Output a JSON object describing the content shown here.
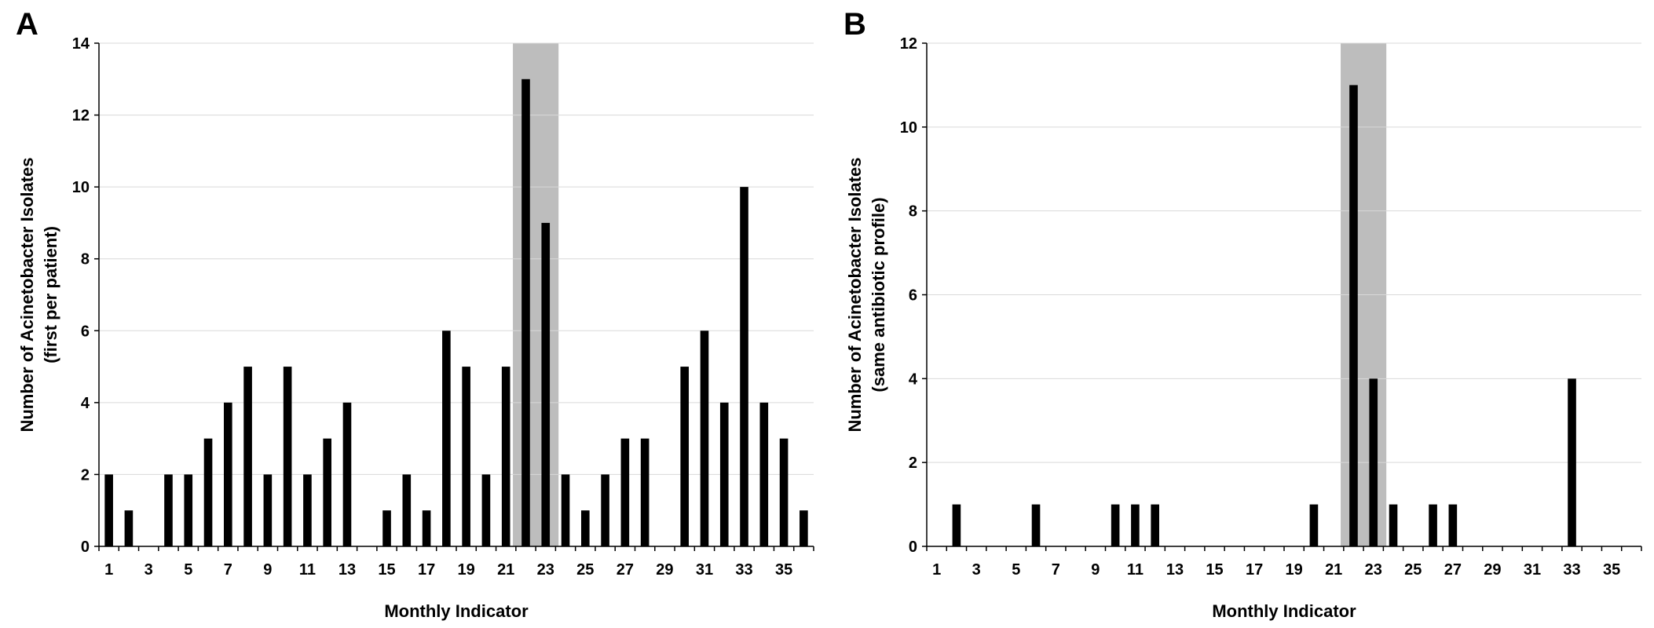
{
  "chart_data": [
    {
      "type": "bar",
      "panel_label": "A",
      "xlabel": "Monthly Indicator",
      "ylabel_lines": [
        "Number of Acinetobacter Isolates",
        "(first per patient)"
      ],
      "ylim": [
        0,
        14
      ],
      "yticks": [
        0,
        2,
        4,
        6,
        8,
        10,
        12,
        14
      ],
      "x_tick_labels": [
        "1",
        "3",
        "5",
        "7",
        "9",
        "11",
        "13",
        "15",
        "17",
        "19",
        "21",
        "23",
        "25",
        "27",
        "29",
        "31",
        "33",
        "35"
      ],
      "categories": [
        1,
        2,
        3,
        4,
        5,
        6,
        7,
        8,
        9,
        10,
        11,
        12,
        13,
        14,
        15,
        16,
        17,
        18,
        19,
        20,
        21,
        22,
        23,
        24,
        25,
        26,
        27,
        28,
        29,
        30,
        31,
        32,
        33,
        34,
        35,
        36
      ],
      "values": [
        2,
        1,
        0,
        2,
        2,
        3,
        4,
        5,
        2,
        5,
        2,
        3,
        4,
        0,
        1,
        2,
        1,
        6,
        5,
        2,
        5,
        13,
        9,
        2,
        1,
        2,
        3,
        3,
        0,
        5,
        6,
        4,
        10,
        4,
        3,
        1
      ],
      "highlight_months": [
        22,
        23
      ],
      "grid": true
    },
    {
      "type": "bar",
      "panel_label": "B",
      "xlabel": "Monthly Indicator",
      "ylabel_lines": [
        "Number of Acinetobacter Isolates",
        "(same antibiotic profile)"
      ],
      "ylim": [
        0,
        12
      ],
      "yticks": [
        0,
        2,
        4,
        6,
        8,
        10,
        12
      ],
      "x_tick_labels": [
        "1",
        "3",
        "5",
        "7",
        "9",
        "11",
        "13",
        "15",
        "17",
        "19",
        "21",
        "23",
        "25",
        "27",
        "29",
        "31",
        "33",
        "35"
      ],
      "categories": [
        1,
        2,
        3,
        4,
        5,
        6,
        7,
        8,
        9,
        10,
        11,
        12,
        13,
        14,
        15,
        16,
        17,
        18,
        19,
        20,
        21,
        22,
        23,
        24,
        25,
        26,
        27,
        28,
        29,
        30,
        31,
        32,
        33,
        34,
        35,
        36
      ],
      "values": [
        0,
        1,
        0,
        0,
        0,
        1,
        0,
        0,
        0,
        1,
        1,
        1,
        0,
        0,
        0,
        0,
        0,
        0,
        0,
        1,
        0,
        11,
        4,
        1,
        0,
        1,
        1,
        0,
        0,
        0,
        0,
        0,
        4,
        0,
        0,
        0
      ],
      "highlight_months": [
        22,
        23
      ],
      "grid": true
    }
  ]
}
